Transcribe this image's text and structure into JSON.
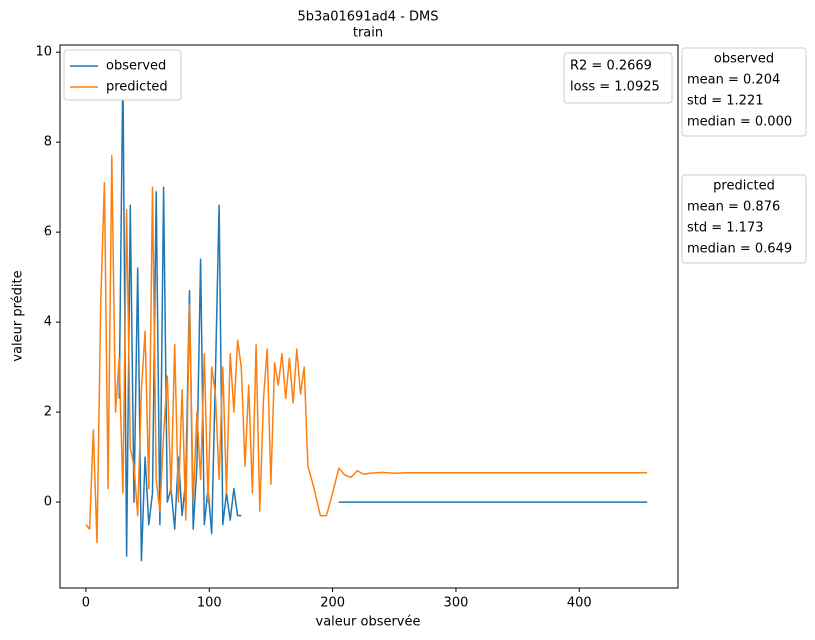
{
  "chart_data": {
    "type": "line",
    "title": "5b3a01691ad4 - DMS",
    "subtitle": "train",
    "x_label": "valeur observée",
    "y_label": "valeur prédite",
    "x": [
      0,
      3,
      6,
      9,
      12,
      15,
      18,
      21,
      24,
      27,
      30,
      33,
      36,
      39,
      42,
      45,
      48,
      51,
      54,
      57,
      60,
      63,
      66,
      69,
      72,
      75,
      78,
      81,
      84,
      87,
      90,
      93,
      96,
      99,
      102,
      105,
      108,
      111,
      114,
      117,
      120,
      123,
      126,
      129,
      132,
      135,
      138,
      141,
      144,
      147,
      150,
      153,
      156,
      159,
      162,
      165,
      168,
      171,
      174,
      177,
      180,
      185,
      190,
      195,
      200,
      205,
      210,
      215,
      220,
      225,
      230,
      240,
      250,
      260,
      300,
      350,
      400,
      455
    ],
    "series": [
      {
        "name": "observed",
        "color": "#1f77b4",
        "values": [
          null,
          null,
          null,
          null,
          null,
          null,
          null,
          null,
          null,
          2.3,
          9.6,
          -1.2,
          6.6,
          0.0,
          5.2,
          -1.3,
          1.0,
          -0.5,
          0.2,
          6.9,
          -0.5,
          7.0,
          0.0,
          0.3,
          -0.6,
          1.0,
          -0.3,
          0.5,
          4.7,
          -0.6,
          0.8,
          5.4,
          -0.5,
          0.3,
          -0.7,
          2.8,
          6.6,
          -0.5,
          0.2,
          -0.4,
          0.3,
          -0.3,
          -0.3,
          null,
          null,
          null,
          null,
          null,
          null,
          null,
          null,
          null,
          null,
          null,
          null,
          null,
          null,
          null,
          null,
          null,
          null,
          null,
          null,
          null,
          null,
          0,
          0,
          0,
          0,
          0,
          0,
          0,
          0,
          0,
          0,
          0,
          0,
          0
        ]
      },
      {
        "name": "predicted",
        "color": "#ff7f0e",
        "values": [
          -0.5,
          -0.6,
          1.6,
          -0.9,
          4.4,
          7.1,
          0.3,
          7.7,
          2.0,
          3.2,
          0.2,
          6.5,
          1.2,
          0.8,
          -0.3,
          2.5,
          3.8,
          0.3,
          7.0,
          0.5,
          -0.2,
          1.5,
          2.8,
          0.2,
          3.5,
          0.0,
          2.5,
          -0.4,
          4.4,
          0.0,
          2.0,
          0.5,
          3.3,
          0.0,
          3.0,
          2.4,
          0.5,
          3.0,
          0.2,
          3.3,
          2.0,
          3.6,
          3.0,
          0.8,
          2.6,
          0.2,
          3.5,
          -0.2,
          2.3,
          3.4,
          0.4,
          3.1,
          2.6,
          3.3,
          2.3,
          3.2,
          2.2,
          3.4,
          2.4,
          3.0,
          0.8,
          0.3,
          -0.3,
          -0.3,
          0.2,
          0.75,
          0.6,
          0.55,
          0.7,
          0.62,
          0.64,
          0.66,
          0.64,
          0.65,
          0.65,
          0.65,
          0.65,
          0.65
        ]
      }
    ],
    "xlim": [
      -21,
      480
    ],
    "ylim": [
      -1.91,
      10.16
    ],
    "xticks": [
      0,
      100,
      200,
      300,
      400
    ],
    "yticks": [
      0,
      2,
      4,
      6,
      8,
      10
    ],
    "legend": "upper left",
    "annotations": [
      "R2 = 0.2669",
      "loss = 1.0925"
    ],
    "stat_boxes": [
      {
        "title": "observed",
        "lines": [
          "mean = 0.204",
          "std = 1.221",
          "median = 0.000"
        ]
      },
      {
        "title": "predicted",
        "lines": [
          "mean = 0.876",
          "std = 1.173",
          "median = 0.649"
        ]
      }
    ]
  }
}
